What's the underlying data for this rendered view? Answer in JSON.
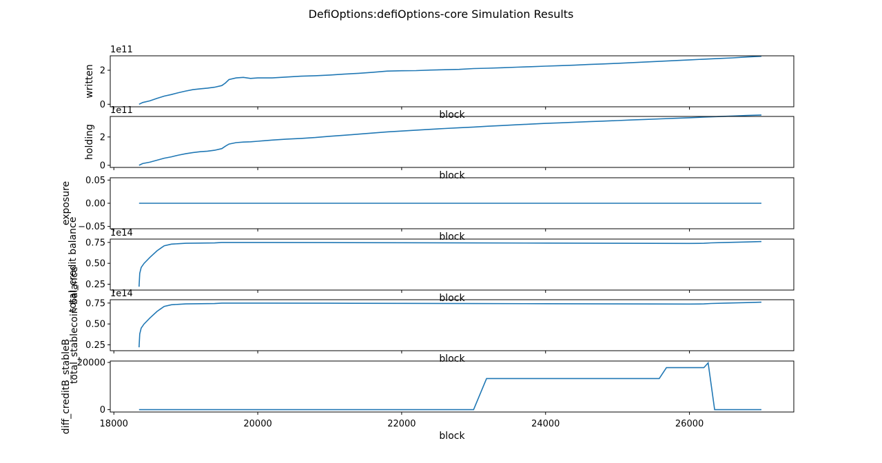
{
  "figure": {
    "title": "DefiOptions:defiOptions-core Simulation Results"
  },
  "colors": {
    "line": "#1f77b4",
    "axis": "#000000",
    "background": "#ffffff"
  },
  "chart_data": [
    {
      "type": "line",
      "id": "written",
      "title": "",
      "xlabel": "block",
      "ylabel": "written",
      "offset_text": "1e11",
      "xlim": [
        17950,
        27450
      ],
      "ylim": [
        -0.15,
        2.85
      ],
      "x_ticks": [],
      "y_ticks": [
        0,
        2
      ],
      "y_tick_labels": [
        "0",
        "2"
      ],
      "x": [
        18350,
        18400,
        18500,
        18600,
        18700,
        18800,
        18900,
        19000,
        19100,
        19200,
        19300,
        19400,
        19500,
        19550,
        19600,
        19700,
        19800,
        19900,
        20000,
        20200,
        20400,
        20600,
        20800,
        21000,
        21200,
        21400,
        21600,
        21800,
        22000,
        22200,
        22400,
        22600,
        22800,
        23000,
        23200,
        23400,
        23600,
        23800,
        24000,
        24200,
        24400,
        24600,
        24800,
        25000,
        25200,
        25400,
        25600,
        25800,
        26000,
        26200,
        26400,
        26600,
        26800,
        27000
      ],
      "y": [
        0.0,
        0.1,
        0.2,
        0.35,
        0.48,
        0.57,
        0.68,
        0.78,
        0.86,
        0.91,
        0.95,
        1.0,
        1.1,
        1.25,
        1.45,
        1.55,
        1.58,
        1.52,
        1.55,
        1.55,
        1.6,
        1.65,
        1.68,
        1.72,
        1.77,
        1.82,
        1.88,
        1.95,
        1.97,
        1.98,
        2.01,
        2.03,
        2.05,
        2.1,
        2.12,
        2.15,
        2.18,
        2.21,
        2.24,
        2.27,
        2.3,
        2.34,
        2.37,
        2.41,
        2.45,
        2.49,
        2.53,
        2.57,
        2.61,
        2.65,
        2.69,
        2.73,
        2.78,
        2.82
      ]
    },
    {
      "type": "line",
      "id": "holding",
      "title": "",
      "xlabel": "block",
      "ylabel": "holding",
      "offset_text": "1e11",
      "xlim": [
        17950,
        27450
      ],
      "ylim": [
        -0.15,
        3.45
      ],
      "x_ticks": [],
      "y_ticks": [
        0,
        2
      ],
      "y_tick_labels": [
        "0",
        "2"
      ],
      "x": [
        18350,
        18400,
        18500,
        18600,
        18700,
        18800,
        18900,
        19000,
        19100,
        19200,
        19300,
        19400,
        19500,
        19550,
        19600,
        19700,
        19800,
        19900,
        20000,
        20200,
        20400,
        20600,
        20800,
        21000,
        21200,
        21400,
        21600,
        21800,
        22000,
        22200,
        22400,
        22600,
        22800,
        23000,
        23200,
        23400,
        23600,
        23800,
        24000,
        24200,
        24400,
        24600,
        24800,
        25000,
        25200,
        25400,
        25600,
        25800,
        26000,
        26200,
        26400,
        26600,
        26800,
        27000
      ],
      "y": [
        0.0,
        0.12,
        0.22,
        0.36,
        0.5,
        0.6,
        0.72,
        0.82,
        0.9,
        0.96,
        1.0,
        1.06,
        1.18,
        1.35,
        1.5,
        1.6,
        1.64,
        1.66,
        1.7,
        1.78,
        1.85,
        1.9,
        1.96,
        2.05,
        2.12,
        2.2,
        2.28,
        2.36,
        2.42,
        2.48,
        2.54,
        2.6,
        2.65,
        2.7,
        2.76,
        2.81,
        2.86,
        2.91,
        2.96,
        3.0,
        3.04,
        3.08,
        3.12,
        3.16,
        3.2,
        3.24,
        3.28,
        3.32,
        3.36,
        3.4,
        3.44,
        3.48,
        3.52,
        3.55
      ]
    },
    {
      "type": "line",
      "id": "exposure",
      "title": "",
      "xlabel": "block",
      "ylabel": "exposure",
      "offset_text": "",
      "xlim": [
        17950,
        27450
      ],
      "ylim": [
        -0.055,
        0.055
      ],
      "x_ticks": [],
      "y_ticks": [
        -0.05,
        0.0,
        0.05
      ],
      "y_tick_labels": [
        "−0.05",
        "0.00",
        "0.05"
      ],
      "x": [
        18350,
        27000
      ],
      "y": [
        0.0,
        0.0
      ]
    },
    {
      "type": "line",
      "id": "total_credit_balance",
      "title": "",
      "xlabel": "block",
      "ylabel": "total_credit balance",
      "offset_text": "1e14",
      "xlim": [
        17950,
        27450
      ],
      "ylim": [
        0.18,
        0.79
      ],
      "x_ticks": [],
      "y_ticks": [
        0.25,
        0.5,
        0.75
      ],
      "y_tick_labels": [
        "0.25",
        "0.50",
        "0.75"
      ],
      "x": [
        18350,
        18360,
        18380,
        18420,
        18500,
        18600,
        18650,
        18700,
        18800,
        18900,
        19000,
        19200,
        19400,
        19500,
        20000,
        21000,
        22000,
        23000,
        24000,
        25000,
        26000,
        26200,
        26300,
        26500,
        26800,
        27000
      ],
      "y": [
        0.22,
        0.38,
        0.45,
        0.5,
        0.57,
        0.65,
        0.68,
        0.71,
        0.73,
        0.735,
        0.74,
        0.742,
        0.744,
        0.75,
        0.75,
        0.748,
        0.746,
        0.744,
        0.742,
        0.74,
        0.738,
        0.74,
        0.745,
        0.75,
        0.755,
        0.76
      ]
    },
    {
      "type": "line",
      "id": "total_stablecoin_balance",
      "title": "",
      "xlabel": "block",
      "ylabel": "total_stablecoin balance",
      "offset_text": "1e14",
      "xlim": [
        17950,
        27450
      ],
      "ylim": [
        0.18,
        0.79
      ],
      "x_ticks": [],
      "y_ticks": [
        0.25,
        0.5,
        0.75
      ],
      "y_tick_labels": [
        "0.25",
        "0.50",
        "0.75"
      ],
      "x": [
        18350,
        18360,
        18380,
        18420,
        18500,
        18600,
        18650,
        18700,
        18800,
        18900,
        19000,
        19200,
        19400,
        19500,
        20000,
        21000,
        22000,
        23000,
        24000,
        25000,
        26000,
        26200,
        26300,
        26500,
        26800,
        27000
      ],
      "y": [
        0.22,
        0.38,
        0.45,
        0.5,
        0.57,
        0.65,
        0.68,
        0.71,
        0.73,
        0.735,
        0.74,
        0.742,
        0.744,
        0.75,
        0.75,
        0.748,
        0.746,
        0.744,
        0.742,
        0.74,
        0.738,
        0.74,
        0.745,
        0.75,
        0.755,
        0.76
      ]
    },
    {
      "type": "line",
      "id": "diff_creditB_stableB",
      "title": "",
      "xlabel": "block",
      "ylabel": "diff_creditB_stableB",
      "offset_text": "",
      "xlim": [
        17950,
        27450
      ],
      "ylim": [
        -1000,
        20600
      ],
      "x_ticks": [
        18000,
        20000,
        22000,
        24000,
        26000
      ],
      "x_tick_labels": [
        "18000",
        "20000",
        "22000",
        "24000",
        "26000"
      ],
      "y_ticks": [
        0,
        20000
      ],
      "y_tick_labels": [
        "0",
        "20000"
      ],
      "x": [
        18350,
        23000,
        23180,
        25580,
        25680,
        26200,
        26260,
        26350,
        27000
      ],
      "y": [
        0,
        0,
        13200,
        13200,
        17800,
        17800,
        19800,
        0,
        0
      ]
    }
  ]
}
